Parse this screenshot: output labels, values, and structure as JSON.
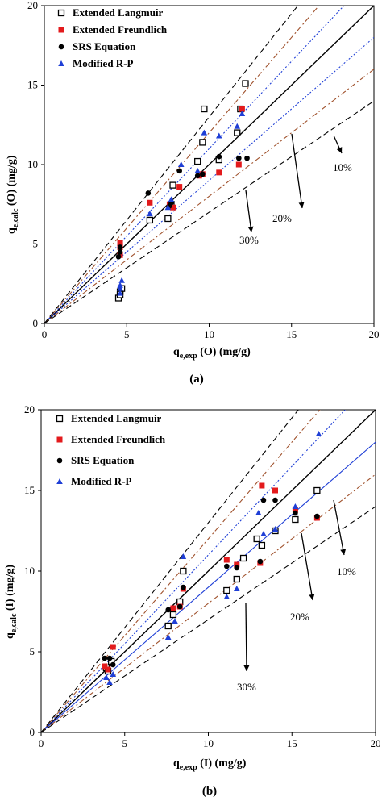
{
  "chart_data": [
    {
      "type": "scatter",
      "caption": "(a)",
      "xlabel": {
        "main": "q",
        "sub": "e,exp",
        "rest": " (O) (mg/g)"
      },
      "ylabel": {
        "main": "q",
        "sub": "e,calc",
        "rest": " (O) (mg/g)"
      },
      "xlim": [
        0,
        20
      ],
      "ylim": [
        0,
        20
      ],
      "xticks": [
        "0",
        "5",
        "10",
        "15",
        "20"
      ],
      "yticks": [
        "0",
        "5",
        "10",
        "15",
        "20"
      ],
      "legend_position": "top-left",
      "reference_lines": [
        {
          "slope": 1.0,
          "style": "solid",
          "color": "#000000"
        },
        {
          "slope": 1.1,
          "style": "dotted",
          "color": "#1f3fd6",
          "label": "10%"
        },
        {
          "slope": 0.9,
          "style": "dotted",
          "color": "#1f3fd6"
        },
        {
          "slope": 1.2,
          "style": "dashdot",
          "color": "#a0522d",
          "label": "20%"
        },
        {
          "slope": 0.8,
          "style": "dashdot",
          "color": "#a0522d"
        },
        {
          "slope": 1.3,
          "style": "dashed",
          "color": "#000000",
          "label": "30%"
        },
        {
          "slope": 0.7,
          "style": "dashed",
          "color": "#000000"
        }
      ],
      "series": [
        {
          "name": "Extended Langmuir",
          "marker": "open-square",
          "color": "#000000",
          "points": [
            [
              4.5,
              1.6
            ],
            [
              4.6,
              1.8
            ],
            [
              4.6,
              2.0
            ],
            [
              4.7,
              2.2
            ],
            [
              6.4,
              6.5
            ],
            [
              7.5,
              6.6
            ],
            [
              7.7,
              7.5
            ],
            [
              7.8,
              8.7
            ],
            [
              9.3,
              10.2
            ],
            [
              9.6,
              11.4
            ],
            [
              9.7,
              13.5
            ],
            [
              10.6,
              10.3
            ],
            [
              11.7,
              12.0
            ],
            [
              11.9,
              13.5
            ],
            [
              12.2,
              15.1
            ]
          ]
        },
        {
          "name": "Extended Freundlich",
          "marker": "filled-square",
          "color": "#e31a1c",
          "points": [
            [
              4.6,
              4.3
            ],
            [
              4.6,
              4.8
            ],
            [
              4.6,
              5.1
            ],
            [
              6.4,
              7.6
            ],
            [
              7.6,
              7.5
            ],
            [
              7.8,
              7.3
            ],
            [
              8.2,
              8.6
            ],
            [
              9.4,
              9.3
            ],
            [
              9.6,
              9.4
            ],
            [
              10.6,
              9.5
            ],
            [
              11.8,
              10.0
            ],
            [
              12.0,
              13.5
            ]
          ]
        },
        {
          "name": "SRS Equation",
          "marker": "filled-circle",
          "color": "#000000",
          "points": [
            [
              4.5,
              4.2
            ],
            [
              4.6,
              4.5
            ],
            [
              4.6,
              4.8
            ],
            [
              6.3,
              8.2
            ],
            [
              7.6,
              7.4
            ],
            [
              7.7,
              7.6
            ],
            [
              8.2,
              9.6
            ],
            [
              9.3,
              9.3
            ],
            [
              9.6,
              9.4
            ],
            [
              10.6,
              10.5
            ],
            [
              11.8,
              10.4
            ],
            [
              12.3,
              10.4
            ]
          ]
        },
        {
          "name": "Modified R-P",
          "marker": "filled-triangle",
          "color": "#1f3fd6",
          "points": [
            [
              4.6,
              1.9
            ],
            [
              4.6,
              2.2
            ],
            [
              4.6,
              2.4
            ],
            [
              4.7,
              2.7
            ],
            [
              6.4,
              6.9
            ],
            [
              7.5,
              7.3
            ],
            [
              7.7,
              7.8
            ],
            [
              8.3,
              10.0
            ],
            [
              9.3,
              9.6
            ],
            [
              9.7,
              12.0
            ],
            [
              10.6,
              11.8
            ],
            [
              11.7,
              12.4
            ],
            [
              12.0,
              13.2
            ]
          ]
        }
      ]
    },
    {
      "type": "scatter",
      "caption": "(b)",
      "xlabel": {
        "main": "q",
        "sub": "e,exp",
        "rest": " (I) (mg/g)"
      },
      "ylabel": {
        "main": "q",
        "sub": "e,calc",
        "rest": " (I) (mg/g)"
      },
      "xlim": [
        0,
        20
      ],
      "ylim": [
        0,
        20
      ],
      "xticks": [
        "0",
        "5",
        "10",
        "15",
        "20"
      ],
      "yticks": [
        "0",
        "5",
        "10",
        "15",
        "20"
      ],
      "legend_position": "top-left",
      "reference_lines": [
        {
          "slope": 1.0,
          "style": "solid",
          "color": "#000000"
        },
        {
          "slope": 1.1,
          "style": "dotted",
          "color": "#1f3fd6",
          "label": "10%"
        },
        {
          "slope": 0.9,
          "style": "solid-thin",
          "color": "#1f3fd6"
        },
        {
          "slope": 1.2,
          "style": "dashdot",
          "color": "#a0522d",
          "label": "20%"
        },
        {
          "slope": 0.8,
          "style": "dashdot",
          "color": "#a0522d"
        },
        {
          "slope": 1.3,
          "style": "dashed",
          "color": "#000000",
          "label": "30%"
        },
        {
          "slope": 0.7,
          "style": "dashed",
          "color": "#000000"
        }
      ],
      "series": [
        {
          "name": "Extended Langmuir",
          "marker": "open-square",
          "color": "#000000",
          "points": [
            [
              3.9,
              4.0
            ],
            [
              4.0,
              3.8
            ],
            [
              4.2,
              4.4
            ],
            [
              7.6,
              6.6
            ],
            [
              7.9,
              7.3
            ],
            [
              8.3,
              8.1
            ],
            [
              8.5,
              10.0
            ],
            [
              11.1,
              8.8
            ],
            [
              11.7,
              9.5
            ],
            [
              12.1,
              10.8
            ],
            [
              12.9,
              12.0
            ],
            [
              13.2,
              11.6
            ],
            [
              14.0,
              12.5
            ],
            [
              15.2,
              13.2
            ],
            [
              16.5,
              15.0
            ]
          ]
        },
        {
          "name": "Extended Freundlich",
          "marker": "filled-square",
          "color": "#e31a1c",
          "points": [
            [
              3.8,
              4.1
            ],
            [
              4.0,
              3.9
            ],
            [
              4.3,
              5.3
            ],
            [
              7.9,
              7.7
            ],
            [
              8.3,
              7.8
            ],
            [
              8.5,
              8.9
            ],
            [
              11.1,
              10.7
            ],
            [
              11.7,
              10.4
            ],
            [
              13.1,
              10.5
            ],
            [
              13.2,
              15.3
            ],
            [
              14.0,
              15.0
            ],
            [
              15.2,
              13.8
            ],
            [
              16.5,
              13.3
            ]
          ]
        },
        {
          "name": "SRS Equation",
          "marker": "filled-circle",
          "color": "#000000",
          "points": [
            [
              3.8,
              4.6
            ],
            [
              4.1,
              4.6
            ],
            [
              4.3,
              4.2
            ],
            [
              7.6,
              7.6
            ],
            [
              8.3,
              7.8
            ],
            [
              8.5,
              9.0
            ],
            [
              11.1,
              10.3
            ],
            [
              11.7,
              10.2
            ],
            [
              13.1,
              10.6
            ],
            [
              13.3,
              14.4
            ],
            [
              14.0,
              14.4
            ],
            [
              15.2,
              13.6
            ],
            [
              16.5,
              13.4
            ]
          ]
        },
        {
          "name": "Modified R-P",
          "marker": "filled-triangle",
          "color": "#1f3fd6",
          "points": [
            [
              3.9,
              3.4
            ],
            [
              4.1,
              3.1
            ],
            [
              4.3,
              3.6
            ],
            [
              7.6,
              5.9
            ],
            [
              8.0,
              6.9
            ],
            [
              8.5,
              10.9
            ],
            [
              11.1,
              8.4
            ],
            [
              11.7,
              8.9
            ],
            [
              13.0,
              13.6
            ],
            [
              13.3,
              12.3
            ],
            [
              14.0,
              12.6
            ],
            [
              15.2,
              14.0
            ],
            [
              16.6,
              18.5
            ]
          ]
        }
      ]
    }
  ]
}
